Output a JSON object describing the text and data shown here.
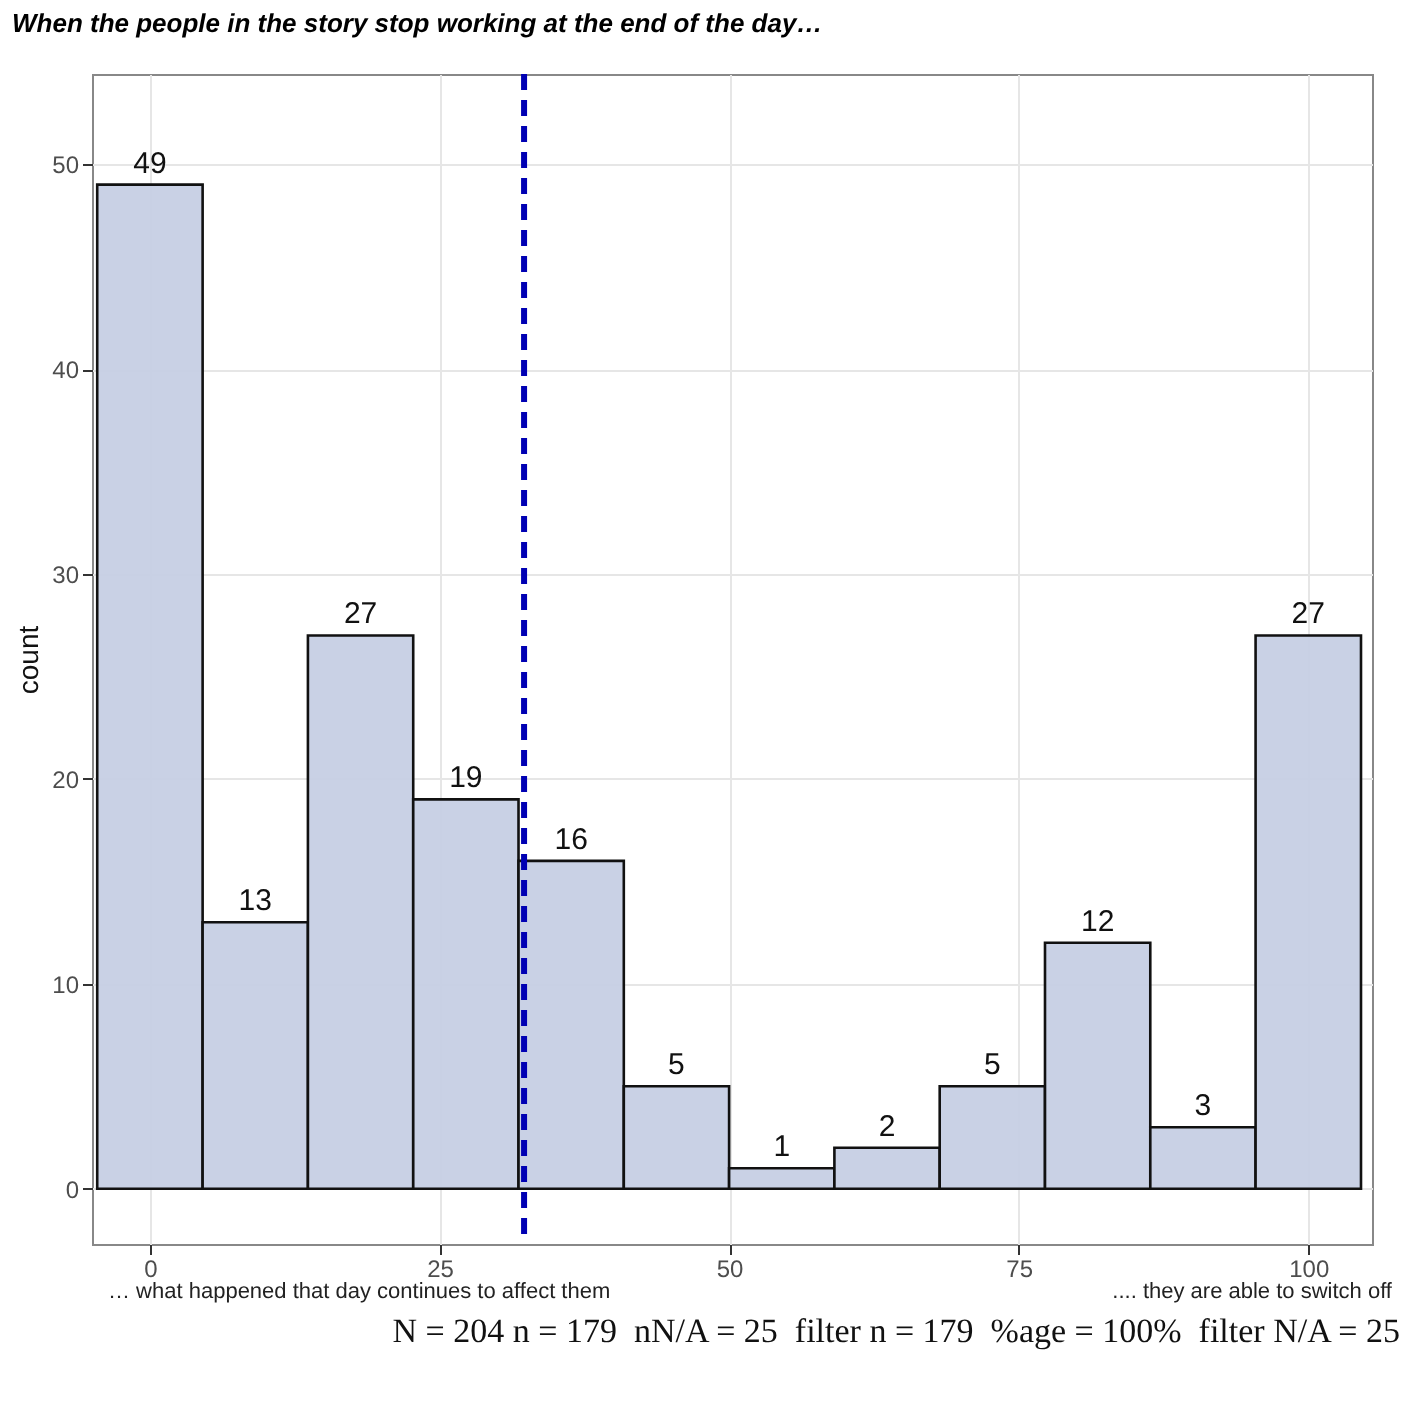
{
  "chart_data": {
    "type": "histogram",
    "title": "When the people in the story stop working at the end of the day…",
    "ylabel": "count",
    "bins": [
      -4.55,
      4.55,
      13.64,
      22.73,
      31.82,
      40.91,
      50,
      59.09,
      68.18,
      77.27,
      86.36,
      95.45,
      104.55
    ],
    "values": [
      49,
      13,
      27,
      19,
      16,
      5,
      1,
      2,
      5,
      12,
      3,
      27
    ],
    "color": "#c6cfe4",
    "data_labels": true,
    "xlim": [
      -5,
      105.5
    ],
    "xticks": [
      0,
      25,
      50,
      75,
      100
    ],
    "ylim": [
      -2.7,
      54.4
    ],
    "yticks": [
      0,
      10,
      20,
      30,
      40,
      50
    ],
    "grid": true,
    "ref_lines": [
      {
        "axis": "x",
        "value": 32.3,
        "color": "#0000b3",
        "line_style": "dashed"
      }
    ],
    "annotations": [
      "… what happened that day continues to affect them",
      ".... they are able to switch off",
      "N = 204 n = 179  nN/A = 25  filter n = 179  %age = 100%  filter N/A = 25"
    ]
  }
}
